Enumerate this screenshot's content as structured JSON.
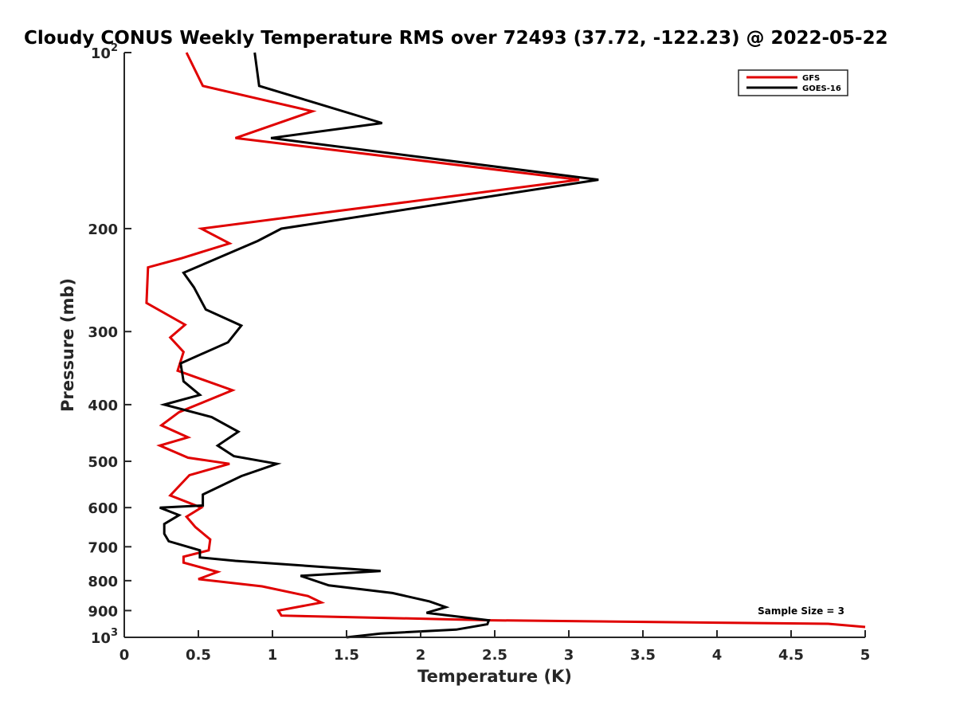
{
  "chart_data": {
    "type": "line",
    "title": "Cloudy CONUS Weekly Temperature RMS over 72493 (37.72, -122.23) @ 2022-05-22",
    "xlabel": "Temperature (K)",
    "ylabel": "Pressure (mb)",
    "xlim": [
      0,
      5
    ],
    "ylim": [
      100,
      1000
    ],
    "y_scale": "log",
    "y_reversed": true,
    "x_ticks": [
      "0",
      "0.5",
      "1",
      "1.5",
      "2",
      "2.5",
      "3",
      "3.5",
      "4",
      "4.5",
      "5"
    ],
    "x_tick_values": [
      0,
      0.5,
      1,
      1.5,
      2,
      2.5,
      3,
      3.5,
      4,
      4.5,
      5
    ],
    "y_ticks": [
      {
        "value": 100,
        "base": "10",
        "exp": "2"
      },
      {
        "value": 200,
        "base": "200",
        "exp": ""
      },
      {
        "value": 300,
        "base": "300",
        "exp": ""
      },
      {
        "value": 400,
        "base": "400",
        "exp": ""
      },
      {
        "value": 500,
        "base": "500",
        "exp": ""
      },
      {
        "value": 600,
        "base": "600",
        "exp": ""
      },
      {
        "value": 700,
        "base": "700",
        "exp": ""
      },
      {
        "value": 800,
        "base": "800",
        "exp": ""
      },
      {
        "value": 900,
        "base": "900",
        "exp": ""
      },
      {
        "value": 1000,
        "base": "10",
        "exp": "3"
      }
    ],
    "grid": false,
    "legend_position": "top-right",
    "annotation": "Sample Size = 3",
    "series": [
      {
        "name": "GFS",
        "color": "#e00000",
        "points": [
          [
            0.42,
            100
          ],
          [
            0.53,
            114
          ],
          [
            1.27,
            126
          ],
          [
            0.75,
            140
          ],
          [
            3.07,
            165
          ],
          [
            0.52,
            200
          ],
          [
            0.71,
            212
          ],
          [
            0.38,
            225
          ],
          [
            0.16,
            233
          ],
          [
            0.15,
            268
          ],
          [
            0.41,
            292
          ],
          [
            0.31,
            307
          ],
          [
            0.4,
            325
          ],
          [
            0.36,
            350
          ],
          [
            0.73,
            378
          ],
          [
            0.37,
            412
          ],
          [
            0.25,
            434
          ],
          [
            0.43,
            455
          ],
          [
            0.24,
            470
          ],
          [
            0.43,
            493
          ],
          [
            0.71,
            505
          ],
          [
            0.44,
            528
          ],
          [
            0.31,
            572
          ],
          [
            0.52,
            600
          ],
          [
            0.42,
            622
          ],
          [
            0.48,
            648
          ],
          [
            0.58,
            680
          ],
          [
            0.57,
            710
          ],
          [
            0.4,
            728
          ],
          [
            0.4,
            745
          ],
          [
            0.63,
            773
          ],
          [
            0.5,
            795
          ],
          [
            0.93,
            818
          ],
          [
            1.24,
            850
          ],
          [
            1.33,
            872
          ],
          [
            1.04,
            900
          ],
          [
            1.06,
            918
          ],
          [
            2.47,
            935
          ],
          [
            4.75,
            948
          ],
          [
            5.0,
            960
          ]
        ]
      },
      {
        "name": "GOES-16",
        "color": "#000000",
        "points": [
          [
            0.88,
            100
          ],
          [
            0.91,
            114
          ],
          [
            1.74,
            132
          ],
          [
            0.99,
            140
          ],
          [
            3.2,
            165
          ],
          [
            1.06,
            200
          ],
          [
            0.9,
            210
          ],
          [
            0.4,
            238
          ],
          [
            0.47,
            252
          ],
          [
            0.55,
            275
          ],
          [
            0.79,
            293
          ],
          [
            0.7,
            313
          ],
          [
            0.38,
            340
          ],
          [
            0.4,
            365
          ],
          [
            0.51,
            385
          ],
          [
            0.27,
            400
          ],
          [
            0.59,
            420
          ],
          [
            0.77,
            445
          ],
          [
            0.63,
            470
          ],
          [
            0.74,
            490
          ],
          [
            1.03,
            505
          ],
          [
            0.79,
            530
          ],
          [
            0.53,
            570
          ],
          [
            0.53,
            595
          ],
          [
            0.24,
            600
          ],
          [
            0.37,
            618
          ],
          [
            0.27,
            640
          ],
          [
            0.27,
            665
          ],
          [
            0.3,
            685
          ],
          [
            0.51,
            710
          ],
          [
            0.51,
            730
          ],
          [
            0.75,
            740
          ],
          [
            1.73,
            770
          ],
          [
            1.19,
            785
          ],
          [
            1.38,
            815
          ],
          [
            1.81,
            840
          ],
          [
            2.06,
            868
          ],
          [
            2.17,
            888
          ],
          [
            2.04,
            908
          ],
          [
            2.46,
            935
          ],
          [
            2.45,
            950
          ],
          [
            2.24,
            970
          ],
          [
            1.73,
            985
          ],
          [
            1.5,
            1000
          ]
        ]
      }
    ]
  }
}
